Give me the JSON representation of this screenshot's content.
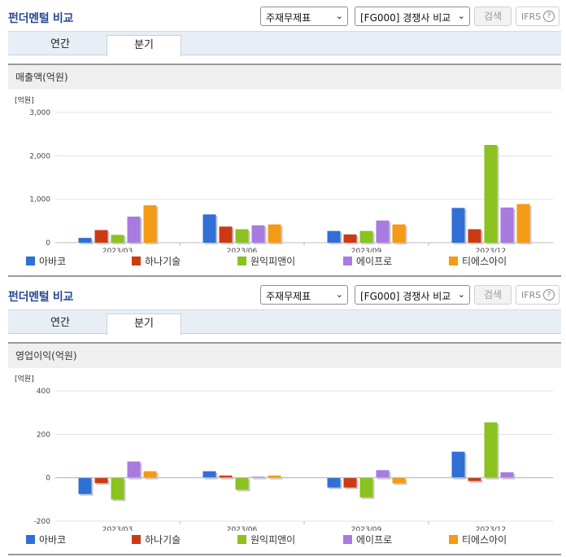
{
  "panels": [
    {
      "title": "펀더멘털 비교",
      "select1": "주재무제표",
      "select2": "[FG000] 경쟁사 비교",
      "search_label": "검색",
      "ifrs_label": "IFRS",
      "ifrs_help": "?",
      "tabs": [
        {
          "label": "연간"
        },
        {
          "label": "분기"
        }
      ],
      "chart_title": "매출액(억원)"
    },
    {
      "title": "펀더멘털 비교",
      "select1": "주재무제표",
      "select2": "[FG000] 경쟁사 비교",
      "search_label": "검색",
      "ifrs_label": "IFRS",
      "ifrs_help": "?",
      "tabs": [
        {
          "label": "연간"
        },
        {
          "label": "분기"
        }
      ],
      "chart_title": "영업이익(억원)"
    }
  ],
  "chart_data": [
    {
      "type": "bar",
      "title": "매출액(억원)",
      "unit_label": "[억원]",
      "categories": [
        "2023/03",
        "2023/06",
        "2023/09",
        "2023/12"
      ],
      "ylim": [
        0,
        3000
      ],
      "yticks": [
        0,
        1000,
        2000,
        3000
      ],
      "ytick_labels": [
        "0",
        "1,000",
        "2,000",
        "3,000"
      ],
      "grid": true,
      "legend_position": "bottom",
      "series": [
        {
          "name": "아바코",
          "color": "#2f6fd6",
          "values": [
            110,
            650,
            270,
            800
          ]
        },
        {
          "name": "하나기술",
          "color": "#cc3a14",
          "values": [
            290,
            370,
            190,
            310
          ]
        },
        {
          "name": "원익피앤이",
          "color": "#8bc21f",
          "values": [
            180,
            310,
            270,
            2250
          ]
        },
        {
          "name": "에이프로",
          "color": "#a77be0",
          "values": [
            600,
            400,
            510,
            810
          ]
        },
        {
          "name": "티에스아이",
          "color": "#f59a14",
          "values": [
            860,
            420,
            420,
            890
          ]
        }
      ]
    },
    {
      "type": "bar",
      "title": "영업이익(억원)",
      "unit_label": "[억원]",
      "categories": [
        "2023/03",
        "2023/06",
        "2023/09",
        "2023/12"
      ],
      "ylim": [
        -200,
        400
      ],
      "yticks": [
        -200,
        0,
        200,
        400
      ],
      "ytick_labels": [
        "-200",
        "0",
        "200",
        "400"
      ],
      "grid": true,
      "legend_position": "bottom",
      "series": [
        {
          "name": "아바코",
          "color": "#2f6fd6",
          "values": [
            -75,
            30,
            -45,
            120
          ]
        },
        {
          "name": "하나기술",
          "color": "#cc3a14",
          "values": [
            -25,
            10,
            -45,
            -15
          ]
        },
        {
          "name": "원익피앤이",
          "color": "#8bc21f",
          "values": [
            -100,
            -55,
            -90,
            255
          ]
        },
        {
          "name": "에이프로",
          "color": "#a77be0",
          "values": [
            75,
            5,
            35,
            25
          ]
        },
        {
          "name": "티에스아이",
          "color": "#f59a14",
          "values": [
            30,
            10,
            -25,
            0
          ]
        }
      ]
    }
  ]
}
